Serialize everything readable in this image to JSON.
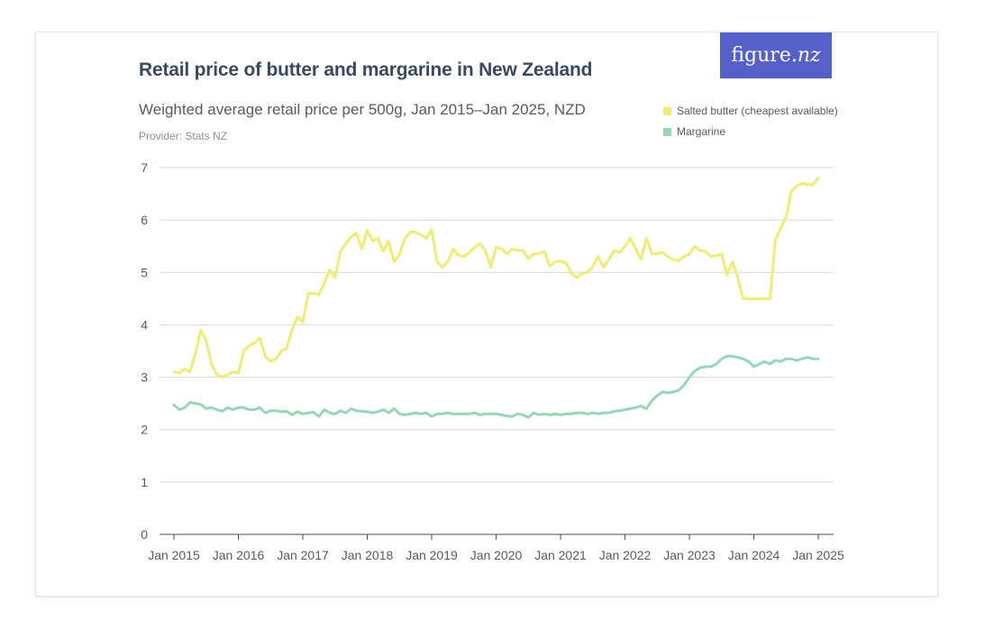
{
  "header": {
    "title": "Retail price of butter and margarine in New Zealand",
    "subtitle": "Weighted average retail price per 500g, Jan 2015–Jan 2025, NZD",
    "provider": "Provider: Stats NZ",
    "logo_text_a": "figure.",
    "logo_text_b": "nz"
  },
  "colors": {
    "butter": "#f2ec6f",
    "margarine": "#94d9b4",
    "grid": "#d6d8da",
    "axis": "#4a4f55"
  },
  "chart_data": {
    "type": "line",
    "title": "Retail price of butter and margarine in New Zealand",
    "subtitle": "Weighted average retail price per 500g, Jan 2015–Jan 2025, NZD",
    "xlabel": "",
    "ylabel": "",
    "ylim": [
      0,
      7
    ],
    "yticks": [
      0,
      1,
      2,
      3,
      4,
      5,
      6,
      7
    ],
    "xlim": [
      "2015-01",
      "2025-01"
    ],
    "xticks": [
      "Jan 2015",
      "Jan 2016",
      "Jan 2017",
      "Jan 2018",
      "Jan 2019",
      "Jan 2020",
      "Jan 2021",
      "Jan 2022",
      "Jan 2023",
      "Jan 2024",
      "Jan 2025"
    ],
    "grid": true,
    "legend_position": "top-right",
    "x_start": "2015-01",
    "x_frequency": "monthly",
    "series": [
      {
        "name": "Salted butter (cheapest available)",
        "color": "#f2ec6f",
        "values": [
          3.1,
          3.08,
          3.16,
          3.1,
          3.45,
          3.9,
          3.7,
          3.25,
          3.05,
          3.0,
          3.05,
          3.1,
          3.08,
          3.5,
          3.6,
          3.65,
          3.75,
          3.4,
          3.3,
          3.35,
          3.5,
          3.55,
          3.9,
          4.15,
          4.05,
          4.6,
          4.6,
          4.58,
          4.8,
          5.05,
          4.9,
          5.4,
          5.55,
          5.68,
          5.75,
          5.45,
          5.8,
          5.6,
          5.65,
          5.4,
          5.6,
          5.2,
          5.35,
          5.65,
          5.77,
          5.77,
          5.72,
          5.65,
          5.82,
          5.2,
          5.1,
          5.2,
          5.45,
          5.33,
          5.3,
          5.38,
          5.48,
          5.55,
          5.42,
          5.1,
          5.48,
          5.45,
          5.35,
          5.45,
          5.42,
          5.42,
          5.26,
          5.35,
          5.36,
          5.4,
          5.12,
          5.2,
          5.22,
          5.18,
          4.98,
          4.9,
          4.98,
          5.0,
          5.12,
          5.3,
          5.1,
          5.25,
          5.42,
          5.38,
          5.5,
          5.65,
          5.45,
          5.25,
          5.65,
          5.35,
          5.36,
          5.38,
          5.3,
          5.25,
          5.22,
          5.3,
          5.35,
          5.5,
          5.42,
          5.4,
          5.3,
          5.32,
          5.35,
          4.95,
          5.2,
          4.9,
          4.5,
          4.5,
          4.49,
          4.5,
          4.49,
          4.5,
          5.6,
          5.85,
          6.05,
          6.55,
          6.65,
          6.7,
          6.68,
          6.67,
          6.8
        ]
      },
      {
        "name": "Margarine",
        "color": "#94d9b4",
        "values": [
          2.47,
          2.38,
          2.42,
          2.52,
          2.5,
          2.48,
          2.4,
          2.42,
          2.38,
          2.35,
          2.42,
          2.38,
          2.42,
          2.42,
          2.38,
          2.38,
          2.42,
          2.32,
          2.36,
          2.36,
          2.34,
          2.35,
          2.28,
          2.34,
          2.3,
          2.32,
          2.33,
          2.25,
          2.38,
          2.32,
          2.3,
          2.36,
          2.32,
          2.4,
          2.36,
          2.35,
          2.34,
          2.32,
          2.34,
          2.38,
          2.32,
          2.4,
          2.3,
          2.28,
          2.3,
          2.32,
          2.3,
          2.32,
          2.25,
          2.3,
          2.3,
          2.32,
          2.3,
          2.3,
          2.3,
          2.3,
          2.32,
          2.28,
          2.3,
          2.3,
          2.3,
          2.28,
          2.26,
          2.25,
          2.3,
          2.28,
          2.23,
          2.32,
          2.28,
          2.3,
          2.28,
          2.3,
          2.28,
          2.3,
          2.3,
          2.32,
          2.32,
          2.3,
          2.32,
          2.3,
          2.32,
          2.32,
          2.35,
          2.36,
          2.38,
          2.4,
          2.42,
          2.45,
          2.4,
          2.55,
          2.65,
          2.72,
          2.7,
          2.72,
          2.75,
          2.85,
          3.0,
          3.12,
          3.18,
          3.2,
          3.2,
          3.25,
          3.35,
          3.4,
          3.4,
          3.38,
          3.35,
          3.3,
          3.2,
          3.25,
          3.3,
          3.25,
          3.32,
          3.3,
          3.35,
          3.35,
          3.32,
          3.35,
          3.38,
          3.35,
          3.35
        ]
      }
    ]
  }
}
